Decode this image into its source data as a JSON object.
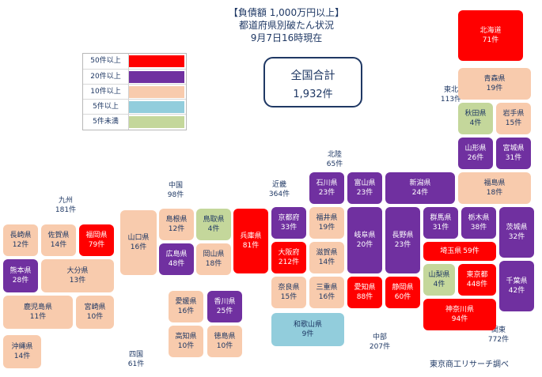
{
  "title": {
    "line1": "【負債額 1,000万円以上】",
    "line2": "都道府県別破たん状況",
    "line3": "9月7日16時現在"
  },
  "total": {
    "label": "全国合計",
    "value": "1,932件"
  },
  "legend": [
    {
      "label": "50件以上",
      "color": "#ff0000"
    },
    {
      "label": "20件以上",
      "color": "#7030a0"
    },
    {
      "label": "10件以上",
      "color": "#f8cbad"
    },
    {
      "label": "5件以上",
      "color": "#92cddc"
    },
    {
      "label": "5件未満",
      "color": "#c4d79b"
    }
  ],
  "regions": {
    "hokkaido": {
      "name": "北海道",
      "count": "71件"
    },
    "tohoku": {
      "name": "東北",
      "count": "113件"
    },
    "kanto": {
      "name": "関東",
      "count": "772件"
    },
    "hokuriku": {
      "name": "北陸",
      "count": "65件"
    },
    "kinki": {
      "name": "近畿",
      "count": "364件"
    },
    "chubu": {
      "name": "中部",
      "count": "207件"
    },
    "chugoku": {
      "name": "中国",
      "count": "98件"
    },
    "shikoku": {
      "name": "四国",
      "count": "61件"
    },
    "kyushu": {
      "name": "九州",
      "count": "181件"
    }
  },
  "prefectures": {
    "hokkaido": {
      "name": "北海道",
      "count": "71件",
      "tier": "red"
    },
    "aomori": {
      "name": "青森県",
      "count": "19件",
      "tier": "orange"
    },
    "akita": {
      "name": "秋田県",
      "count": "4件",
      "tier": "green"
    },
    "iwate": {
      "name": "岩手県",
      "count": "15件",
      "tier": "orange"
    },
    "yamagata": {
      "name": "山形県",
      "count": "26件",
      "tier": "purple"
    },
    "miyagi": {
      "name": "宮城県",
      "count": "31件",
      "tier": "purple"
    },
    "fukushima": {
      "name": "福島県",
      "count": "18件",
      "tier": "orange"
    },
    "niigata": {
      "name": "新潟県",
      "count": "24件",
      "tier": "purple"
    },
    "ishikawa": {
      "name": "石川県",
      "count": "23件",
      "tier": "purple"
    },
    "toyama": {
      "name": "富山県",
      "count": "23件",
      "tier": "purple"
    },
    "fukui": {
      "name": "福井県",
      "count": "19件",
      "tier": "orange"
    },
    "gunma": {
      "name": "群馬県",
      "count": "31件",
      "tier": "purple"
    },
    "tochigi": {
      "name": "栃木県",
      "count": "38件",
      "tier": "purple"
    },
    "ibaraki": {
      "name": "茨城県",
      "count": "32件",
      "tier": "purple"
    },
    "saitama": {
      "name": "埼玉県",
      "count": "59件",
      "tier": "red"
    },
    "chiba": {
      "name": "千葉県",
      "count": "42件",
      "tier": "purple"
    },
    "tokyo": {
      "name": "東京都",
      "count": "448件",
      "tier": "red"
    },
    "kanagawa": {
      "name": "神奈川県",
      "count": "94件",
      "tier": "red"
    },
    "yamanashi": {
      "name": "山梨県",
      "count": "4件",
      "tier": "green"
    },
    "nagano": {
      "name": "長野県",
      "count": "23件",
      "tier": "purple"
    },
    "gifu": {
      "name": "岐阜県",
      "count": "20件",
      "tier": "purple"
    },
    "shizuoka": {
      "name": "静岡県",
      "count": "60件",
      "tier": "red"
    },
    "aichi": {
      "name": "愛知県",
      "count": "88件",
      "tier": "red"
    },
    "mie": {
      "name": "三重県",
      "count": "16件",
      "tier": "orange"
    },
    "shiga": {
      "name": "滋賀県",
      "count": "14件",
      "tier": "orange"
    },
    "kyoto": {
      "name": "京都府",
      "count": "33件",
      "tier": "purple"
    },
    "osaka": {
      "name": "大阪府",
      "count": "212件",
      "tier": "red"
    },
    "nara": {
      "name": "奈良県",
      "count": "15件",
      "tier": "orange"
    },
    "wakayama": {
      "name": "和歌山県",
      "count": "9件",
      "tier": "blue"
    },
    "hyogo": {
      "name": "兵庫県",
      "count": "81件",
      "tier": "red"
    },
    "tottori": {
      "name": "鳥取県",
      "count": "4件",
      "tier": "green"
    },
    "shimane": {
      "name": "島根県",
      "count": "12件",
      "tier": "orange"
    },
    "okayama": {
      "name": "岡山県",
      "count": "18件",
      "tier": "orange"
    },
    "hiroshima": {
      "name": "広島県",
      "count": "48件",
      "tier": "purple"
    },
    "yamaguchi": {
      "name": "山口県",
      "count": "16件",
      "tier": "orange"
    },
    "kagawa": {
      "name": "香川県",
      "count": "25件",
      "tier": "purple"
    },
    "ehime": {
      "name": "愛媛県",
      "count": "16件",
      "tier": "orange"
    },
    "tokushima": {
      "name": "徳島県",
      "count": "10件",
      "tier": "orange"
    },
    "kochi": {
      "name": "高知県",
      "count": "10件",
      "tier": "orange"
    },
    "fukuoka": {
      "name": "福岡県",
      "count": "79件",
      "tier": "red"
    },
    "saga": {
      "name": "佐賀県",
      "count": "14件",
      "tier": "orange"
    },
    "nagasaki": {
      "name": "長崎県",
      "count": "12件",
      "tier": "orange"
    },
    "kumamoto": {
      "name": "熊本県",
      "count": "28件",
      "tier": "purple"
    },
    "oita": {
      "name": "大分県",
      "count": "13件",
      "tier": "orange"
    },
    "miyazaki": {
      "name": "宮崎県",
      "count": "10件",
      "tier": "orange"
    },
    "kagoshima": {
      "name": "鹿児島県",
      "count": "11件",
      "tier": "orange"
    },
    "okinawa": {
      "name": "沖縄県",
      "count": "14件",
      "tier": "orange"
    }
  },
  "source": "東京商工リサーチ調べ"
}
